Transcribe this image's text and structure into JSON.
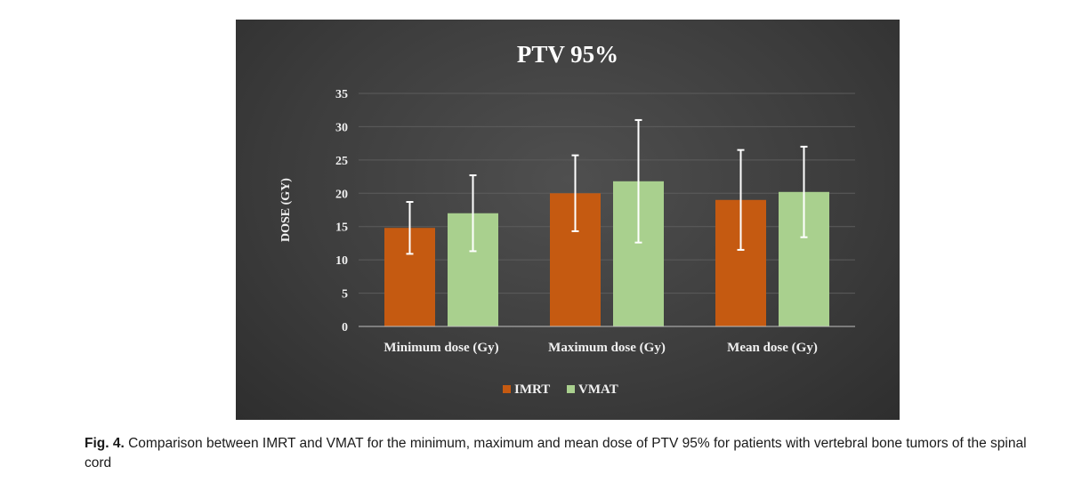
{
  "chart_data": {
    "type": "bar",
    "title": "PTV 95%",
    "xlabel": "",
    "ylabel": "DOSE (GY)",
    "ylim": [
      0,
      35
    ],
    "yticks": [
      0,
      5,
      10,
      15,
      20,
      25,
      30,
      35
    ],
    "categories": [
      "Minimum dose (Gy)",
      "Maximum dose (Gy)",
      "Mean dose (Gy)"
    ],
    "series": [
      {
        "name": "IMRT",
        "color": "#c55a11",
        "values": [
          14.8,
          20.0,
          19.0
        ],
        "error": [
          3.9,
          5.7,
          7.5
        ]
      },
      {
        "name": "VMAT",
        "color": "#a9d08e",
        "values": [
          17.0,
          21.8,
          20.2
        ],
        "error": [
          5.7,
          9.2,
          6.8
        ]
      }
    ],
    "legend": "bottom",
    "grid": true
  },
  "caption": {
    "label": "Fig. 4.",
    "text": "Comparison between IMRT and VMAT for the minimum, maximum and mean dose of PTV 95% for patients with vertebral bone tumors of the spinal cord"
  }
}
